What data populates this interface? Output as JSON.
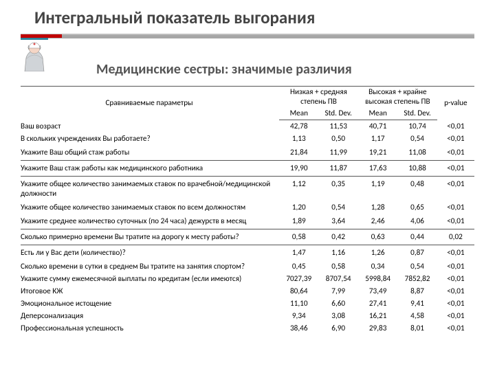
{
  "title": "Интегральный показатель выгорания",
  "subtitle": "Медицинские сестры: значимые различия",
  "table": {
    "param_header": "Сравниваемые параметры",
    "group_a": "Низкая + средняя степень ПВ",
    "group_b": "Высокая + крайне высокая степень ПВ",
    "pvalue_label": "p-value",
    "mean_label": "Mean",
    "sd_label": "Std. Dev.",
    "rows": [
      {
        "p": "Ваш возраст",
        "m1": "42,78",
        "s1": "11,53",
        "m2": "40,71",
        "s2": "10,74",
        "pv": "<0,01"
      },
      {
        "p": "В скольких учреждениях Вы работаете?",
        "m1": "1,13",
        "s1": "0,50",
        "m2": "1,17",
        "s2": "0,54",
        "pv": "<0,01"
      },
      {
        "p": "Укажите Ваш общий стаж работы",
        "m1": "21,84",
        "s1": "11,99",
        "m2": "19,21",
        "s2": "11,08",
        "pv": "<0,01"
      },
      {
        "p": "Укажите Ваш стаж работы как медицинского работника",
        "m1": "19,90",
        "s1": "11,87",
        "m2": "17,63",
        "s2": "10,88",
        "pv": "<0,01"
      },
      {
        "p": "Укажите общее количество занимаемых ставок по врачебной/медицинской должности",
        "m1": "1,12",
        "s1": "0,35",
        "m2": "1,19",
        "s2": "0,48",
        "pv": "<0,01"
      },
      {
        "p": "Укажите общее количество занимаемых ставок по всем должностям",
        "m1": "1,20",
        "s1": "0,54",
        "m2": "1,28",
        "s2": "0,65",
        "pv": "<0,01"
      },
      {
        "p": "Укажите среднее количество суточных (по 24 часа) дежурств в месяц",
        "m1": "1,89",
        "s1": "3,64",
        "m2": "2,46",
        "s2": "4,06",
        "pv": "<0,01"
      },
      {
        "p": "Сколько примерно времени Вы тратите на дорогу к месту работы?",
        "m1": "0,58",
        "s1": "0,42",
        "m2": "0,63",
        "s2": "0,44",
        "pv": "0,02"
      },
      {
        "p": "Есть ли у Вас дети (количество)?",
        "m1": "1,47",
        "s1": "1,16",
        "m2": "1,26",
        "s2": "0,87",
        "pv": "<0,01"
      },
      {
        "p": "Сколько времени в сутки в среднем Вы тратите на занятия спортом?",
        "m1": "0,45",
        "s1": "0,58",
        "m2": "0,34",
        "s2": "0,54",
        "pv": "<0,01"
      },
      {
        "p": "Укажите сумму ежемесячной выплаты по кредитам (если имеются)",
        "m1": "7027,39",
        "s1": "8707,54",
        "m2": "5998,84",
        "s2": "7852,82",
        "pv": "<0,01"
      },
      {
        "p": "Итоговое КЖ",
        "m1": "80,64",
        "s1": "7,99",
        "m2": "73,49",
        "s2": "8,87",
        "pv": "<0,01"
      },
      {
        "p": "Эмоциональное истощение",
        "m1": "11,10",
        "s1": "6,60",
        "m2": "27,41",
        "s2": "9,41",
        "pv": "<0,01"
      },
      {
        "p": "Деперсонализация",
        "m1": "9,34",
        "s1": "3,08",
        "m2": "16,21",
        "s2": "4,58",
        "pv": "<0,01"
      },
      {
        "p": "Профессиональная успешность",
        "m1": "38,46",
        "s1": "6,90",
        "m2": "29,83",
        "s2": "8,01",
        "pv": "<0,01"
      }
    ],
    "seps_before": [
      3,
      4,
      7,
      8
    ]
  },
  "style": {
    "title_color": "#444444",
    "bar_red": "#c00000",
    "bar_teal": "#31859c",
    "bar_gray": "#bfbfbf"
  }
}
